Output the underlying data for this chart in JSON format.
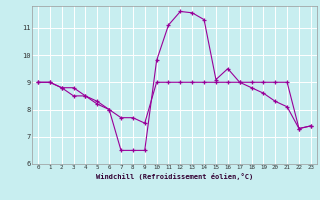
{
  "xlabel": "Windchill (Refroidissement éolien,°C)",
  "bg_color": "#c8eef0",
  "line_color": "#990099",
  "grid_color": "#ffffff",
  "xlim": [
    -0.5,
    23.5
  ],
  "ylim": [
    6,
    11.8
  ],
  "yticks": [
    6,
    7,
    8,
    9,
    10,
    11
  ],
  "xticks": [
    0,
    1,
    2,
    3,
    4,
    5,
    6,
    7,
    8,
    9,
    10,
    11,
    12,
    13,
    14,
    15,
    16,
    17,
    18,
    19,
    20,
    21,
    22,
    23
  ],
  "line1_x": [
    0,
    1,
    2,
    3,
    4,
    5,
    6,
    7,
    8,
    9,
    10,
    11,
    12,
    13,
    14,
    15,
    16,
    17,
    18,
    19,
    20,
    21,
    22,
    23
  ],
  "line1_y": [
    9.0,
    9.0,
    8.8,
    8.8,
    8.5,
    8.3,
    8.0,
    7.7,
    7.7,
    7.5,
    9.0,
    9.0,
    9.0,
    9.0,
    9.0,
    9.0,
    9.0,
    9.0,
    9.0,
    9.0,
    9.0,
    9.0,
    7.3,
    7.4
  ],
  "line2_x": [
    0,
    1,
    2,
    3,
    4,
    5,
    6,
    7,
    8,
    9,
    10,
    11,
    12,
    13,
    14,
    15,
    16,
    17,
    18,
    19,
    20,
    21,
    22,
    23
  ],
  "line2_y": [
    9.0,
    9.0,
    8.8,
    8.5,
    8.5,
    8.2,
    8.0,
    6.5,
    6.5,
    6.5,
    9.8,
    11.1,
    11.6,
    11.55,
    11.3,
    9.1,
    9.5,
    9.0,
    8.8,
    8.6,
    8.3,
    8.1,
    7.3,
    7.4
  ]
}
